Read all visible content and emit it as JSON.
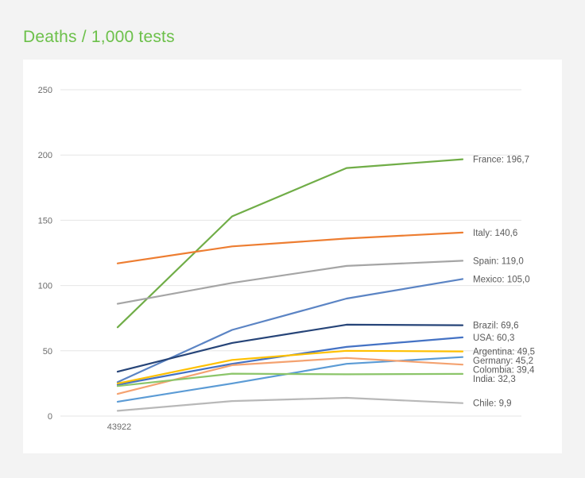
{
  "title": "Deaths / 1,000 tests",
  "chart_data": {
    "type": "line",
    "title": "Deaths / 1,000 tests",
    "x": [
      "43922",
      "",
      "",
      ""
    ],
    "ylim": [
      0,
      250
    ],
    "yticks": [
      "0",
      "50",
      "100",
      "150",
      "200",
      "250"
    ],
    "grid": true,
    "series": [
      {
        "name": "France",
        "label": "France: 196,7",
        "color": "#70ad47",
        "values": [
          68,
          153,
          190,
          196.7
        ]
      },
      {
        "name": "Italy",
        "label": "Italy: 140,6",
        "color": "#ed7d31",
        "values": [
          117,
          130,
          136,
          140.6
        ]
      },
      {
        "name": "Spain",
        "label": "Spain: 119,0",
        "color": "#a5a5a5",
        "values": [
          86,
          102,
          115,
          119.0
        ]
      },
      {
        "name": "Mexico",
        "label": "Mexico: 105,0",
        "color": "#5b84c4",
        "values": [
          26,
          66,
          90,
          105.0
        ]
      },
      {
        "name": "Brazil",
        "label": "Brazil: 69,6",
        "color": "#264478",
        "values": [
          34,
          56,
          70,
          69.6
        ]
      },
      {
        "name": "USA",
        "label": "USA: 60,3",
        "color": "#4472c4",
        "values": [
          24,
          40,
          53,
          60.3
        ]
      },
      {
        "name": "Argentina",
        "label": "Argentina: 49,5",
        "color": "#ffc000",
        "values": [
          25,
          43,
          50,
          49.5
        ]
      },
      {
        "name": "Germany",
        "label": "Germany: 45,2",
        "color": "#5b9bd5",
        "values": [
          11,
          25,
          40,
          45.2
        ]
      },
      {
        "name": "Colombia",
        "label": "Colombia: 39,4",
        "color": "#f4a270",
        "values": [
          17,
          39,
          44.5,
          39.4
        ]
      },
      {
        "name": "India",
        "label": "India: 32,3",
        "color": "#8cc56a",
        "values": [
          23,
          32.5,
          32,
          32.3
        ]
      },
      {
        "name": "Chile",
        "label": "Chile: 9,9",
        "color": "#b8b8b8",
        "values": [
          4,
          11.5,
          14,
          9.9
        ]
      }
    ]
  }
}
